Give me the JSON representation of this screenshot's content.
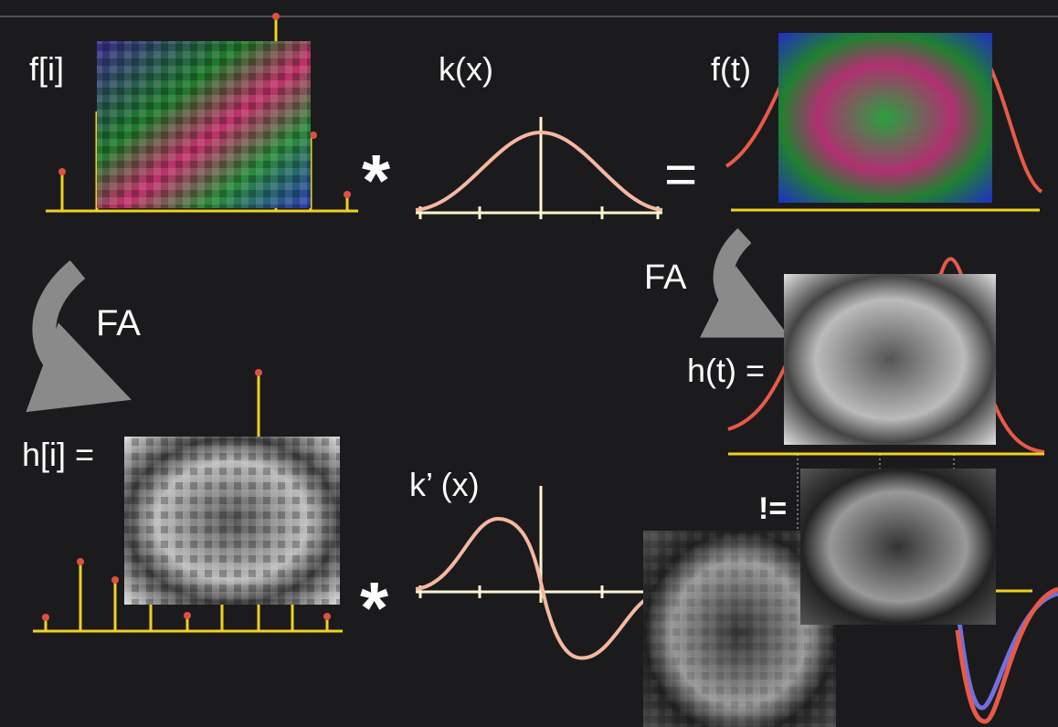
{
  "labels": {
    "f_discrete": "f[i]",
    "kernel": "k(x)",
    "f_continuous": "f(t)",
    "convolve_top": "*",
    "equals": "=",
    "fa_left": "FA",
    "fa_right": "FA",
    "h_continuous": "h(t) =",
    "h_discrete": "h[i] =",
    "kernel_derivative": "k’ (x)",
    "not_equal": "!=",
    "convolve_bottom": "*"
  }
}
